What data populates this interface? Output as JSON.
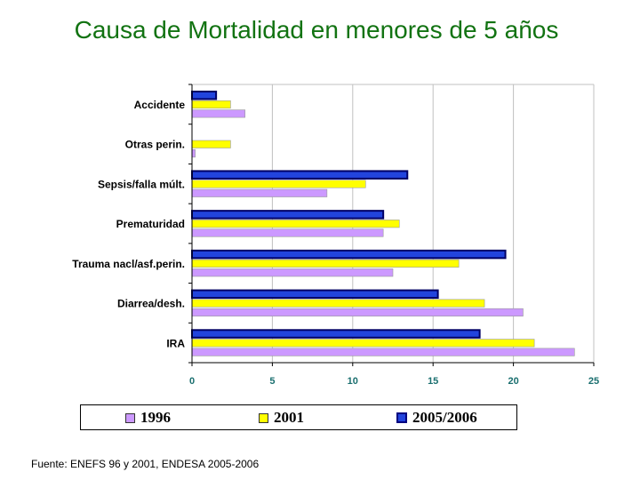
{
  "page": {
    "title": "Causa de Mortalidad en menores de 5 años",
    "source": "Fuente: ENEFS 96 y 2001, ENDESA 2005-2006"
  },
  "colors": {
    "s1996": "#cc99ff",
    "s2001": "#ffff00",
    "s2005": "#2244dd",
    "grid": "#c0c0c0",
    "tick": "#1a6f6f"
  },
  "chart_data": {
    "type": "bar",
    "orientation": "horizontal",
    "title": "Causa de Mortalidad en menores de 5 años",
    "categories": [
      "Accidente",
      "Otras perin.",
      "Sepsis/falla múlt.",
      "Prematuridad",
      "Trauma nacl/asf.perin.",
      "Diarrea/desh.",
      "IRA"
    ],
    "series": [
      {
        "name": "2005/2006",
        "values": [
          1.5,
          0,
          13.4,
          11.9,
          19.5,
          15.3,
          17.9
        ]
      },
      {
        "name": "2001",
        "values": [
          2.4,
          2.4,
          10.8,
          12.9,
          16.6,
          18.2,
          21.3
        ]
      },
      {
        "name": "1996",
        "values": [
          3.3,
          0.2,
          8.4,
          11.9,
          12.5,
          20.6,
          23.8
        ]
      }
    ],
    "xlim": [
      0,
      25
    ],
    "xticks": [
      0,
      5,
      10,
      15,
      20,
      25
    ],
    "grid": true,
    "legend": [
      "1996",
      "2001",
      "2005/2006"
    ],
    "legend_position": "bottom"
  }
}
